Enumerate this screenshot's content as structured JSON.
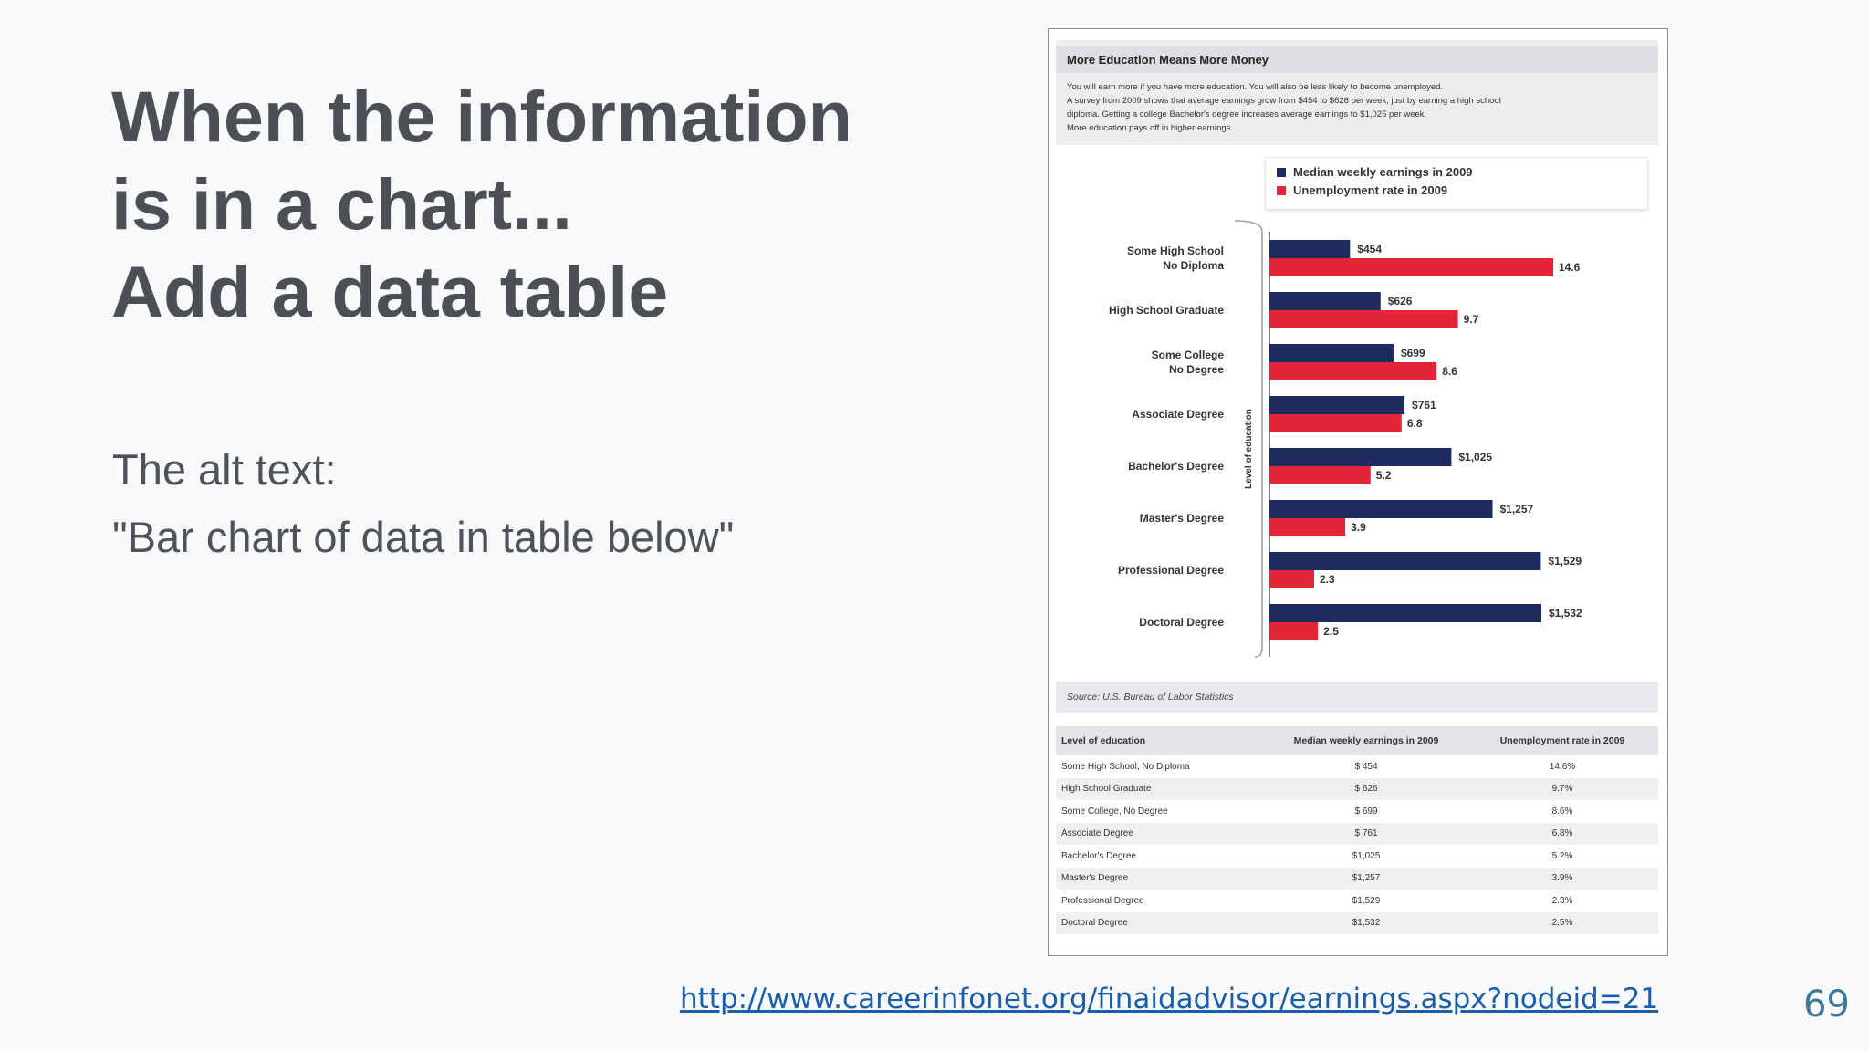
{
  "slide": {
    "title_lines": [
      "When the information",
      "is in a chart...",
      "Add a data table"
    ],
    "alt_label": "The alt text:",
    "alt_value": "\"Bar chart of data in table below\"",
    "link": "http://www.careerinfonet.org/finaidadvisor/earnings.aspx?nodeid=21",
    "page_number": "69"
  },
  "figure": {
    "title": "More Education Means More Money",
    "intro_lines": [
      "You will earn more if you have more education. You will also be less likely to become unemployed.",
      "A survey from 2009 shows that average earnings grow from $454 to $626 per week, just by earning a high school",
      "diploma. Getting a college Bachelor's degree increases average earnings to $1,025 per week.",
      "More education pays off in higher earnings."
    ],
    "source": "Source: U.S. Bureau of Labor Statistics",
    "table_headers": [
      "Level of education",
      "Median weekly earnings in 2009",
      "Unemployment rate in 2009"
    ],
    "table_rows": [
      [
        "Some High School, No Diploma",
        "$   454",
        "14.6%"
      ],
      [
        "High School Graduate",
        "$   626",
        "9.7%"
      ],
      [
        "Some College, No Degree",
        "$   699",
        "8.6%"
      ],
      [
        "Associate Degree",
        "$   761",
        "6.8%"
      ],
      [
        "Bachelor's Degree",
        "$1,025",
        "5.2%"
      ],
      [
        "Master's Degree",
        "$1,257",
        "3.9%"
      ],
      [
        "Professional Degree",
        "$1,529",
        "2.3%"
      ],
      [
        "Doctoral Degree",
        "$1,532",
        "2.5%"
      ]
    ]
  },
  "chart_data": {
    "type": "bar",
    "orientation": "horizontal",
    "title": "More Education Means More Money",
    "ylabel": "Level of education",
    "categories": [
      [
        "Some High School",
        "No Diploma"
      ],
      [
        "High School Graduate"
      ],
      [
        "Some College",
        "No Degree"
      ],
      [
        "Associate Degree"
      ],
      [
        "Bachelor's Degree"
      ],
      [
        "Master's Degree"
      ],
      [
        "Professional Degree"
      ],
      [
        "Doctoral Degree"
      ]
    ],
    "series": [
      {
        "name": "Median weekly earnings in 2009",
        "color": "#1d2b5e",
        "values": [
          454,
          626,
          699,
          761,
          1025,
          1257,
          1529,
          1532
        ],
        "labels": [
          "$454",
          "$626",
          "$699",
          "$761",
          "$1,025",
          "$1,257",
          "$1,529",
          "$1,532"
        ]
      },
      {
        "name": "Unemployment rate in 2009",
        "color": "#e3253a",
        "values": [
          14.6,
          9.7,
          8.6,
          6.8,
          5.2,
          3.9,
          2.3,
          2.5
        ],
        "labels": [
          "14.6",
          "9.7",
          "8.6",
          "6.8",
          "5.2",
          "3.9",
          "2.3",
          "2.5"
        ]
      }
    ],
    "legend_position": "top-right",
    "grid": false
  }
}
